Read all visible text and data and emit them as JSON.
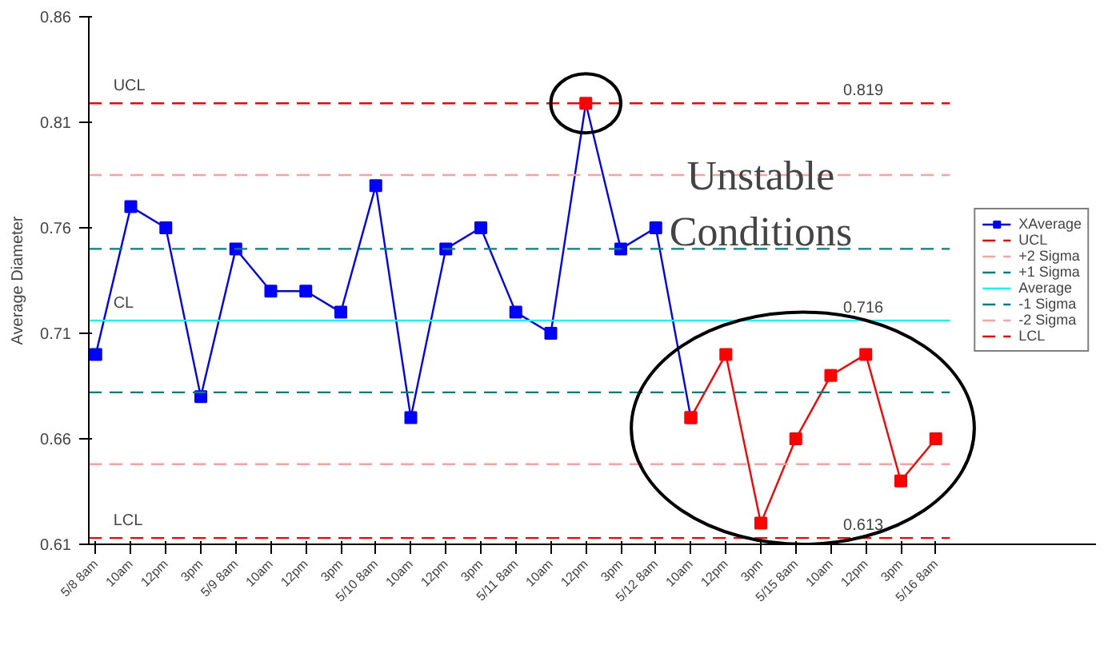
{
  "chart_data": {
    "type": "line",
    "ylabel": "Average Diameter",
    "categories": [
      "5/8 8am",
      "10am",
      "12pm",
      "3pm",
      "5/9 8am",
      "10am",
      "12pm",
      "3pm",
      "5/10 8am",
      "10am",
      "12pm",
      "3pm",
      "5/11 8am",
      "10am",
      "12pm",
      "3pm",
      "5/12 8am",
      "10am",
      "12pm",
      "3pm",
      "5/15 8am",
      "10am",
      "12pm",
      "3pm",
      "5/16 8am"
    ],
    "series": [
      {
        "name": "XAverage",
        "color": "#0000ff",
        "colors": [
          "#0000ff",
          "#0000ff",
          "#0000ff",
          "#0000ff",
          "#0000ff",
          "#0000ff",
          "#0000ff",
          "#0000ff",
          "#0000ff",
          "#0000ff",
          "#0000ff",
          "#0000ff",
          "#0000ff",
          "#0000ff",
          "#ff0000",
          "#0000ff",
          "#0000ff",
          "#ff0000",
          null,
          null,
          null,
          null,
          null,
          null,
          null
        ],
        "values": [
          0.7,
          0.77,
          0.76,
          0.68,
          0.75,
          0.73,
          0.73,
          0.72,
          0.78,
          0.67,
          0.75,
          0.76,
          0.72,
          0.71,
          0.819,
          0.75,
          0.76,
          0.67,
          null,
          null,
          null,
          null,
          null,
          null,
          null
        ]
      },
      {
        "color": "#ff0000",
        "values": [
          null,
          null,
          null,
          null,
          null,
          null,
          null,
          null,
          null,
          null,
          null,
          null,
          null,
          null,
          null,
          null,
          null,
          0.67,
          0.7,
          0.62,
          0.66,
          0.69,
          0.7,
          0.64,
          0.66
        ]
      }
    ],
    "ref_lines": [
      {
        "axis": "y",
        "value": 0.819,
        "label": "UCL",
        "color": "#ff0000",
        "line_style": "dashed"
      },
      {
        "axis": "y",
        "value": 0.785,
        "label": "+2 Sigma",
        "color": "#ffa0a0",
        "line_style": "dashed"
      },
      {
        "axis": "y",
        "value": 0.75,
        "label": "+1 Sigma",
        "color": "#008080",
        "line_style": "dashed"
      },
      {
        "axis": "y",
        "value": 0.716,
        "label": "Average",
        "color": "#00ffff",
        "line_style": "solid"
      },
      {
        "axis": "y",
        "value": 0.682,
        "label": "-1 Sigma",
        "color": "#008080",
        "line_style": "dashed"
      },
      {
        "axis": "y",
        "value": 0.648,
        "label": "-2 Sigma",
        "color": "#ffa0a0",
        "line_style": "dashed"
      },
      {
        "axis": "y",
        "value": 0.613,
        "label": "LCL",
        "color": "#ff0000",
        "line_style": "dashed"
      }
    ],
    "annotations": [
      {
        "text": "UCL",
        "y": 0.819
      },
      {
        "text": "0.819",
        "y": 0.819
      },
      {
        "text": "CL",
        "y": 0.716
      },
      {
        "text": "0.716",
        "y": 0.716
      },
      {
        "text": "LCL",
        "y": 0.613
      },
      {
        "text": "0.613",
        "y": 0.613
      },
      "Unstable Conditions"
    ],
    "ylim": [
      0.61,
      0.86
    ],
    "yticks": [
      0.61,
      0.66,
      0.71,
      0.76,
      0.81,
      0.86
    ],
    "grid": false,
    "legend": "right",
    "marker": "square",
    "line_style": "solid"
  }
}
